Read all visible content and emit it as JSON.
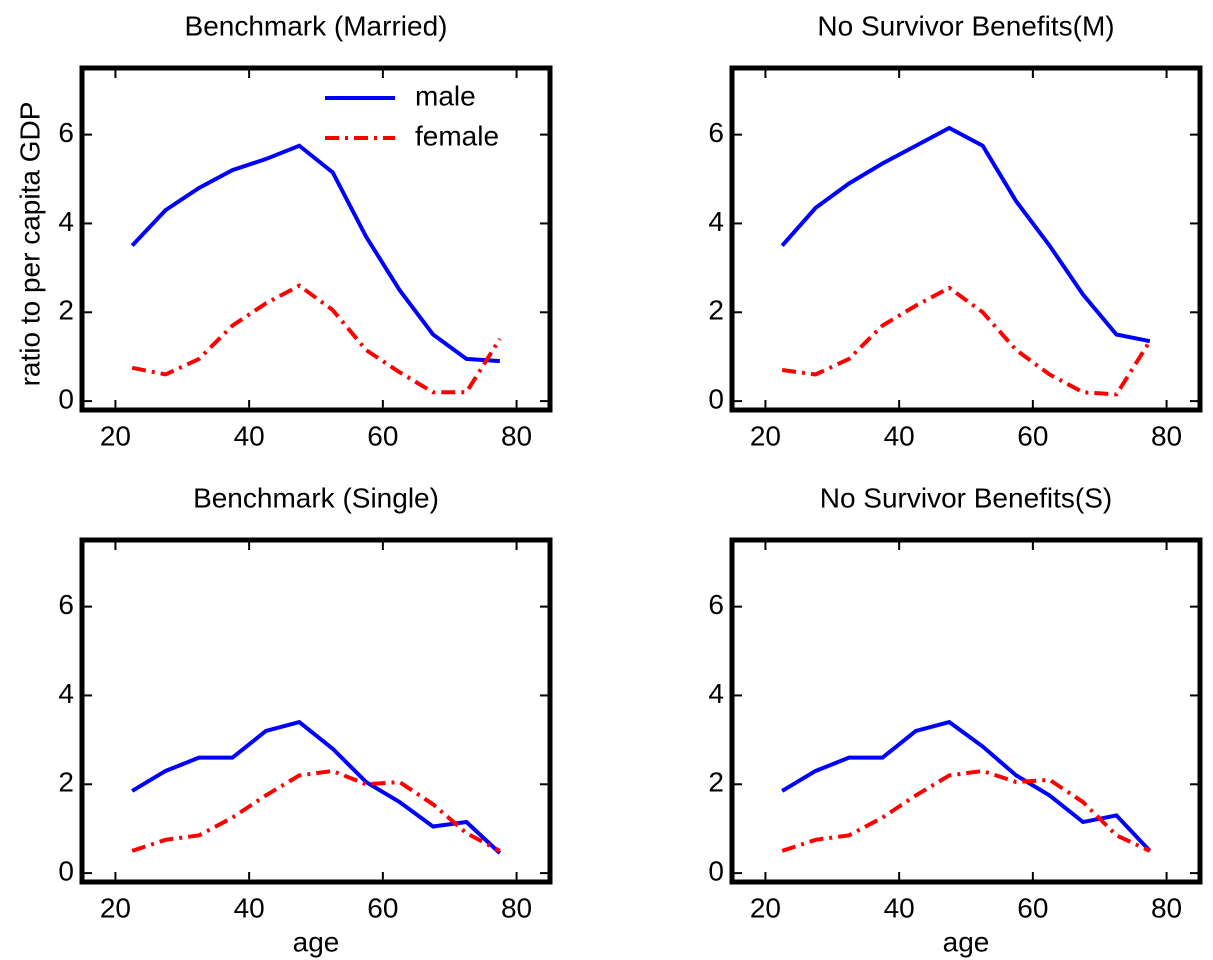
{
  "chart_data": [
    {
      "type": "line",
      "title": "Benchmark (Married)",
      "ylabel": "ratio to per capita GDP",
      "x": [
        22.5,
        27.5,
        32.5,
        37.5,
        42.5,
        47.5,
        52.5,
        57.5,
        62.5,
        67.5,
        72.5,
        77.5
      ],
      "series": [
        {
          "name": "male",
          "color": "#0000ff",
          "linestyle": "solid",
          "values": [
            3.5,
            4.3,
            4.8,
            5.2,
            5.45,
            5.75,
            5.15,
            3.7,
            2.5,
            1.5,
            0.95,
            0.9
          ]
        },
        {
          "name": "female",
          "color": "#ff0000",
          "linestyle": "dashdot",
          "values": [
            0.75,
            0.6,
            0.95,
            1.7,
            2.2,
            2.6,
            2.05,
            1.15,
            0.65,
            0.2,
            0.2,
            1.4
          ]
        }
      ],
      "xlim": [
        15,
        85
      ],
      "ylim": [
        -0.2,
        7.5
      ],
      "xticks": [
        20,
        40,
        60,
        80
      ],
      "yticks": [
        0,
        2,
        4,
        6
      ],
      "legend": "upper right"
    },
    {
      "type": "line",
      "title": "No Survivor Benefits(M)",
      "x": [
        22.5,
        27.5,
        32.5,
        37.5,
        42.5,
        47.5,
        52.5,
        57.5,
        62.5,
        67.5,
        72.5,
        77.5
      ],
      "series": [
        {
          "name": "male",
          "color": "#0000ff",
          "linestyle": "solid",
          "values": [
            3.5,
            4.35,
            4.9,
            5.35,
            5.75,
            6.15,
            5.75,
            4.5,
            3.5,
            2.4,
            1.5,
            1.35
          ]
        },
        {
          "name": "female",
          "color": "#ff0000",
          "linestyle": "dashdot",
          "values": [
            0.7,
            0.6,
            0.95,
            1.7,
            2.15,
            2.55,
            2.0,
            1.15,
            0.6,
            0.2,
            0.15,
            1.35
          ]
        }
      ],
      "xlim": [
        15,
        85
      ],
      "ylim": [
        -0.2,
        7.5
      ],
      "xticks": [
        20,
        40,
        60,
        80
      ],
      "yticks": [
        0,
        2,
        4,
        6
      ]
    },
    {
      "type": "line",
      "title": "Benchmark (Single)",
      "xlabel": "age",
      "x": [
        22.5,
        27.5,
        32.5,
        37.5,
        42.5,
        47.5,
        52.5,
        57.5,
        62.5,
        67.5,
        72.5,
        77.5
      ],
      "series": [
        {
          "name": "male",
          "color": "#0000ff",
          "linestyle": "solid",
          "values": [
            1.85,
            2.3,
            2.6,
            2.6,
            3.2,
            3.4,
            2.8,
            2.05,
            1.6,
            1.05,
            1.15,
            0.45
          ]
        },
        {
          "name": "female",
          "color": "#ff0000",
          "linestyle": "dashdot",
          "values": [
            0.5,
            0.75,
            0.85,
            1.25,
            1.75,
            2.2,
            2.3,
            2.0,
            2.05,
            1.55,
            0.9,
            0.5
          ]
        }
      ],
      "xlim": [
        15,
        85
      ],
      "ylim": [
        -0.2,
        7.5
      ],
      "xticks": [
        20,
        40,
        60,
        80
      ],
      "yticks": [
        0,
        2,
        4,
        6
      ]
    },
    {
      "type": "line",
      "title": "No Survivor Benefits(S)",
      "xlabel": "age",
      "x": [
        22.5,
        27.5,
        32.5,
        37.5,
        42.5,
        47.5,
        52.5,
        57.5,
        62.5,
        67.5,
        72.5,
        77.5
      ],
      "series": [
        {
          "name": "male",
          "color": "#0000ff",
          "linestyle": "solid",
          "values": [
            1.85,
            2.3,
            2.6,
            2.6,
            3.2,
            3.4,
            2.85,
            2.2,
            1.75,
            1.15,
            1.3,
            0.5
          ]
        },
        {
          "name": "female",
          "color": "#ff0000",
          "linestyle": "dashdot",
          "values": [
            0.5,
            0.75,
            0.85,
            1.25,
            1.75,
            2.2,
            2.3,
            2.05,
            2.1,
            1.6,
            0.85,
            0.5
          ]
        }
      ],
      "xlim": [
        15,
        85
      ],
      "ylim": [
        -0.2,
        7.5
      ],
      "xticks": [
        20,
        40,
        60,
        80
      ],
      "yticks": [
        0,
        2,
        4,
        6
      ]
    }
  ]
}
